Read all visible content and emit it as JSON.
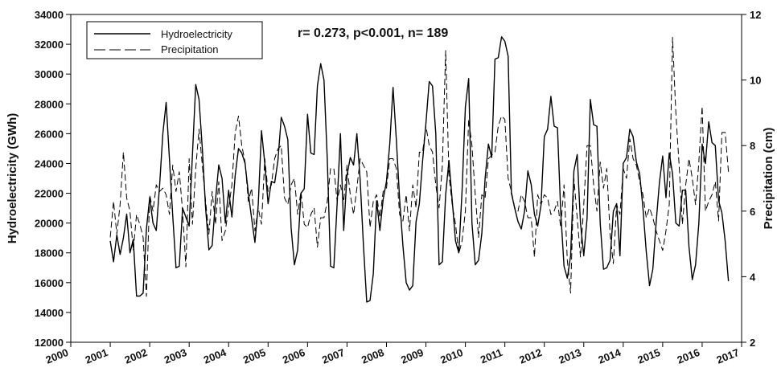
{
  "chart_data": {
    "type": "line",
    "annotation": "r= 0.273, p<0.001, n= 189",
    "ylabel_left": "Hydroelectricity (GWh)",
    "ylabel_right": "Precipitation (cm)",
    "xlim": [
      2000,
      2017
    ],
    "ylim_left": [
      12000,
      34000
    ],
    "ylim_right": [
      2,
      12
    ],
    "x_ticks": [
      "2000",
      "2001",
      "2002",
      "2003",
      "2004",
      "2005",
      "2006",
      "2007",
      "2008",
      "2009",
      "2010",
      "2011",
      "2012",
      "2013",
      "2014",
      "2015",
      "2016",
      "2017"
    ],
    "y_left_ticks": [
      "12000",
      "14000",
      "16000",
      "18000",
      "20000",
      "22000",
      "24000",
      "26000",
      "28000",
      "30000",
      "32000",
      "34000"
    ],
    "y_right_ticks": [
      "2",
      "4",
      "6",
      "8",
      "10",
      "12"
    ],
    "grid": false,
    "legend_position": "top-left",
    "series": [
      {
        "name": "Hydroelectricity",
        "axis": "left",
        "style": "solid",
        "start": 2001.0,
        "step": 0.0833333,
        "values": [
          18800,
          17400,
          19200,
          17900,
          19000,
          20600,
          18000,
          18900,
          15100,
          15100,
          15300,
          19600,
          21700,
          20000,
          19500,
          22500,
          26000,
          28100,
          24300,
          20500,
          17000,
          17100,
          21000,
          20400,
          19800,
          24600,
          29300,
          28300,
          25000,
          21000,
          18200,
          18500,
          21500,
          23900,
          23000,
          20000,
          22200,
          20400,
          23200,
          25000,
          24700,
          24000,
          22000,
          20300,
          18700,
          21200,
          26200,
          24000,
          21300,
          22800,
          22700,
          24200,
          27100,
          26500,
          25600,
          19700,
          17200,
          18200,
          22000,
          22300,
          27300,
          24700,
          24600,
          29200,
          30700,
          29600,
          24300,
          17100,
          17000,
          21300,
          26000,
          19500,
          23200,
          24400,
          23900,
          26000,
          22900,
          18500,
          14700,
          14800,
          16600,
          21500,
          19500,
          21600,
          22800,
          25300,
          29100,
          25600,
          21600,
          18500,
          16000,
          15500,
          15800,
          20100,
          21300,
          24200,
          26700,
          29500,
          29200,
          26000,
          17200,
          17400,
          21900,
          24200,
          21500,
          18800,
          18000,
          22200,
          27800,
          29700,
          20000,
          17200,
          17500,
          19300,
          23000,
          25300,
          24400,
          31000,
          31100,
          32500,
          32200,
          31200,
          22000,
          21000,
          20100,
          19600,
          20800,
          23500,
          22600,
          20600,
          19800,
          21200,
          25800,
          26300,
          28500,
          26500,
          26400,
          20700,
          17100,
          16300,
          17800,
          23500,
          24600,
          20000,
          17800,
          20300,
          28300,
          26600,
          26500,
          20000,
          16900,
          17000,
          17500,
          20800,
          21300,
          17800,
          24000,
          24400,
          26300,
          25800,
          24100,
          23300,
          21000,
          18100,
          15800,
          16900,
          20000,
          22700,
          24500,
          21700,
          24700,
          23300,
          20000,
          19800,
          22200,
          22200,
          18400,
          16200,
          17200,
          20000,
          25300,
          24000,
          26800,
          25400,
          25200,
          21500,
          20700,
          18800,
          16100
        ]
      },
      {
        "name": "Precipitation",
        "axis": "right",
        "style": "dashed",
        "start": 2001.0,
        "step": 0.0833333,
        "values": [
          5.2,
          6.3,
          5.3,
          6.2,
          7.8,
          6.4,
          6.0,
          4.8,
          5.9,
          5.6,
          5.2,
          3.4,
          6.5,
          6.0,
          6.8,
          6.6,
          6.7,
          6.5,
          5.9,
          7.4,
          6.6,
          7.2,
          6.0,
          4.3,
          7.6,
          5.6,
          7.3,
          8.5,
          7.4,
          6.3,
          5.3,
          6.6,
          5.6,
          6.9,
          5.1,
          5.4,
          6.1,
          6.8,
          8.4,
          8.9,
          8.0,
          7.5,
          6.3,
          6.7,
          5.4,
          6.1,
          5.6,
          7.6,
          6.6,
          6.8,
          7.6,
          7.9,
          8.0,
          6.4,
          6.2,
          6.8,
          7.0,
          5.9,
          6.6,
          5.6,
          5.5,
          5.9,
          6.1,
          4.9,
          5.8,
          5.8,
          6.3,
          7.3,
          7.3,
          6.3,
          6.8,
          6.3,
          7.4,
          6.5,
          5.9,
          6.7,
          7.6,
          7.4,
          7.2,
          5.5,
          6.3,
          6.5,
          5.8,
          6.6,
          6.7,
          7.6,
          7.6,
          7.3,
          5.9,
          5.7,
          6.5,
          5.4,
          6.8,
          6.1,
          7.8,
          7.8,
          8.6,
          8.0,
          7.8,
          6.8,
          6.1,
          7.4,
          10.9,
          7.1,
          6.2,
          5.6,
          4.7,
          5.1,
          6.0,
          8.8,
          8.0,
          6.5,
          5.2,
          6.5,
          6.4,
          7.6,
          7.7,
          7.8,
          8.6,
          8.9,
          8.8,
          7.0,
          6.6,
          6.1,
          6.0,
          6.5,
          6.3,
          5.8,
          5.8,
          4.6,
          6.5,
          6.2,
          6.5,
          6.4,
          5.9,
          6.0,
          6.3,
          5.5,
          6.8,
          4.5,
          3.5,
          7.0,
          5.8,
          4.6,
          6.2,
          8.0,
          8.0,
          6.8,
          6.0,
          7.5,
          6.7,
          7.3,
          5.3,
          4.4,
          6.2,
          5.9,
          7.3,
          7.0,
          8.2,
          7.6,
          7.4,
          6.9,
          6.5,
          5.8,
          6.1,
          5.8,
          5.4,
          5.1,
          4.8,
          5.4,
          6.2,
          11.3,
          9.0,
          7.4,
          5.6,
          6.8,
          7.6,
          7.0,
          6.2,
          7.5,
          9.2,
          6.0,
          6.3,
          6.5,
          6.9,
          5.7,
          8.4,
          8.4,
          7.2
        ]
      }
    ]
  }
}
